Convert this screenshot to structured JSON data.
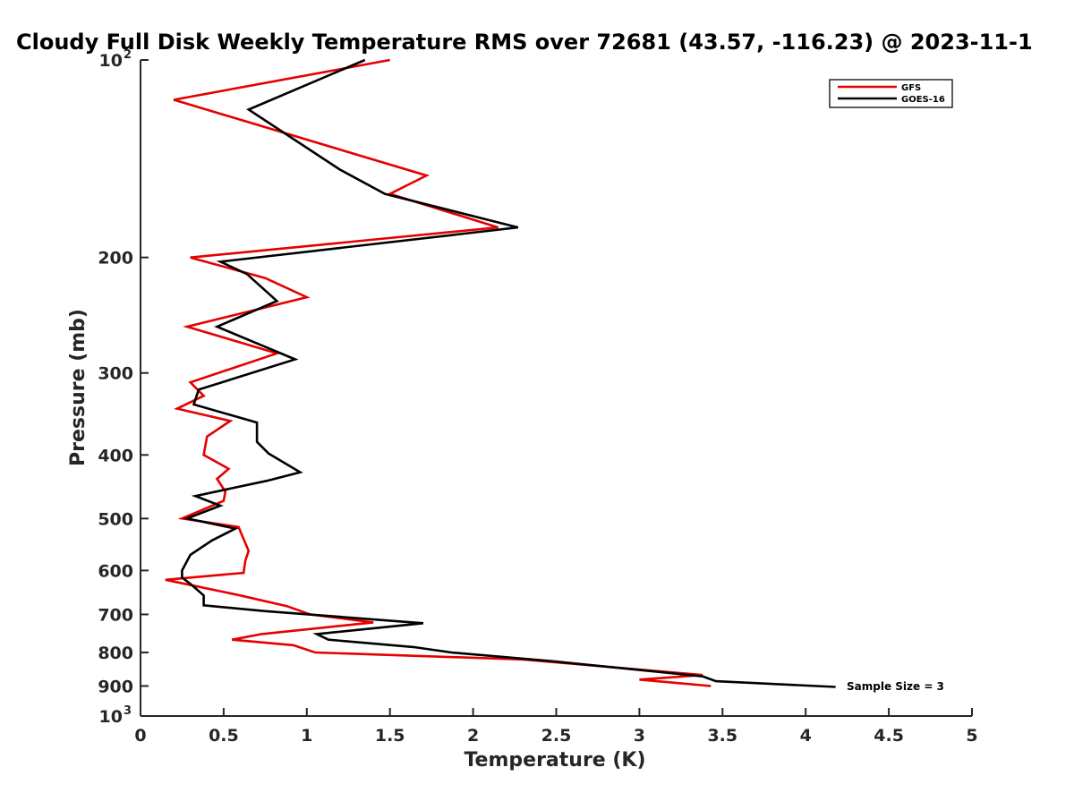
{
  "chart_data": {
    "type": "line",
    "title": "Cloudy Full Disk Weekly Temperature RMS over 72681 (43.57, -116.23) @ 2023-11-1",
    "xlabel": "Temperature (K)",
    "ylabel": "Pressure (mb)",
    "xlim": [
      0,
      5
    ],
    "ylim": [
      1000,
      100
    ],
    "y_scale": "log",
    "y_reversed": true,
    "grid": false,
    "legend_position": "top-right",
    "x_ticks": [
      "0",
      "0.5",
      "1",
      "1.5",
      "2",
      "2.5",
      "3",
      "3.5",
      "4",
      "4.5",
      "5"
    ],
    "x_tick_values": [
      0,
      0.5,
      1,
      1.5,
      2,
      2.5,
      3,
      3.5,
      4,
      4.5,
      5
    ],
    "y_ticks": [
      {
        "value": 100,
        "label": "10",
        "sup": "2"
      },
      {
        "value": 200,
        "label": "200",
        "sup": ""
      },
      {
        "value": 300,
        "label": "300",
        "sup": ""
      },
      {
        "value": 400,
        "label": "400",
        "sup": ""
      },
      {
        "value": 500,
        "label": "500",
        "sup": ""
      },
      {
        "value": 600,
        "label": "600",
        "sup": ""
      },
      {
        "value": 700,
        "label": "700",
        "sup": ""
      },
      {
        "value": 800,
        "label": "800",
        "sup": ""
      },
      {
        "value": 900,
        "label": "900",
        "sup": ""
      },
      {
        "value": 1000,
        "label": "10",
        "sup": "3"
      }
    ],
    "series": [
      {
        "name": "GFS",
        "color": "#e60000",
        "points": [
          [
            1.5,
            100
          ],
          [
            0.2,
            115
          ],
          [
            1.72,
            150
          ],
          [
            1.5,
            160
          ],
          [
            2.15,
            180
          ],
          [
            0.3,
            200
          ],
          [
            0.75,
            215
          ],
          [
            1.0,
            230
          ],
          [
            0.28,
            255
          ],
          [
            0.82,
            280
          ],
          [
            0.3,
            310
          ],
          [
            0.38,
            325
          ],
          [
            0.22,
            340
          ],
          [
            0.54,
            355
          ],
          [
            0.4,
            375
          ],
          [
            0.38,
            400
          ],
          [
            0.53,
            420
          ],
          [
            0.46,
            435
          ],
          [
            0.51,
            455
          ],
          [
            0.5,
            470
          ],
          [
            0.25,
            500
          ],
          [
            0.59,
            515
          ],
          [
            0.61,
            530
          ],
          [
            0.65,
            560
          ],
          [
            0.63,
            580
          ],
          [
            0.62,
            605
          ],
          [
            0.15,
            620
          ],
          [
            0.6,
            655
          ],
          [
            0.88,
            680
          ],
          [
            1.02,
            700
          ],
          [
            1.4,
            720
          ],
          [
            0.73,
            750
          ],
          [
            0.55,
            765
          ],
          [
            0.92,
            780
          ],
          [
            1.05,
            800
          ],
          [
            2.3,
            820
          ],
          [
            3.38,
            866
          ],
          [
            3.0,
            880
          ],
          [
            3.43,
            900
          ]
        ]
      },
      {
        "name": "GOES-16",
        "color": "#000000",
        "points": [
          [
            1.35,
            100
          ],
          [
            0.65,
            119
          ],
          [
            1.2,
            147
          ],
          [
            1.47,
            160
          ],
          [
            2.27,
            180
          ],
          [
            0.48,
            203
          ],
          [
            0.64,
            212
          ],
          [
            0.82,
            233
          ],
          [
            0.46,
            255
          ],
          [
            0.93,
            286
          ],
          [
            0.35,
            318
          ],
          [
            0.32,
            335
          ],
          [
            0.7,
            357
          ],
          [
            0.7,
            382
          ],
          [
            0.77,
            398
          ],
          [
            0.96,
            425
          ],
          [
            0.76,
            438
          ],
          [
            0.33,
            462
          ],
          [
            0.48,
            478
          ],
          [
            0.28,
            500
          ],
          [
            0.57,
            518
          ],
          [
            0.43,
            540
          ],
          [
            0.3,
            568
          ],
          [
            0.25,
            600
          ],
          [
            0.25,
            615
          ],
          [
            0.31,
            632
          ],
          [
            0.38,
            655
          ],
          [
            0.38,
            678
          ],
          [
            0.75,
            692
          ],
          [
            1.7,
            722
          ],
          [
            1.06,
            750
          ],
          [
            1.13,
            765
          ],
          [
            1.64,
            785
          ],
          [
            1.87,
            800
          ],
          [
            2.48,
            825
          ],
          [
            3.38,
            870
          ],
          [
            3.46,
            885
          ],
          [
            4.18,
            903
          ]
        ]
      }
    ],
    "annotation": "Sample Size = 3"
  }
}
